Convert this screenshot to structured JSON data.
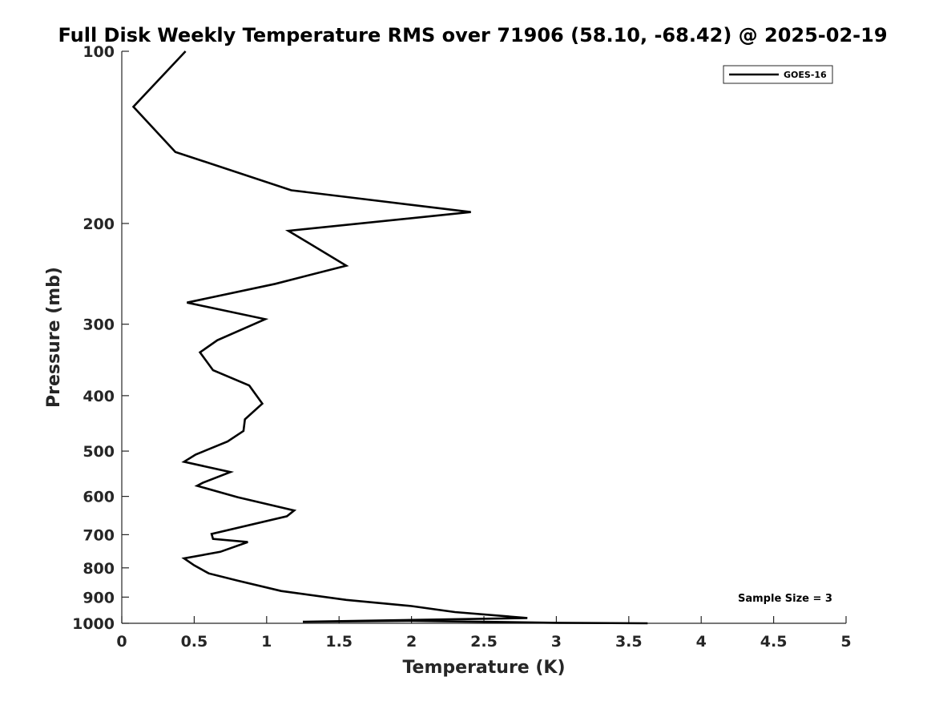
{
  "chart_data": {
    "type": "line",
    "title": "Full Disk Weekly Temperature RMS over 71906 (58.10, -68.42) @ 2025-02-19",
    "xlabel": "Temperature (K)",
    "ylabel": "Pressure (mb)",
    "xlim": [
      0,
      5
    ],
    "ylim": [
      1000,
      100
    ],
    "yscale": "log",
    "xticks": [
      0,
      0.5,
      1,
      1.5,
      2,
      2.5,
      3,
      3.5,
      4,
      4.5,
      5
    ],
    "xtick_labels": [
      "0",
      "0.5",
      "1",
      "1.5",
      "2",
      "2.5",
      "3",
      "3.5",
      "4",
      "4.5",
      "5"
    ],
    "yticks": [
      100,
      200,
      300,
      400,
      500,
      600,
      700,
      800,
      900,
      1000
    ],
    "ytick_labels": [
      "100",
      "200",
      "300",
      "400",
      "500",
      "600",
      "700",
      "800",
      "900",
      "1000"
    ],
    "grid": false,
    "legend_position": "top-right",
    "series": [
      {
        "name": "GOES-16",
        "color": "#000000",
        "points": [
          [
            0.44,
            100
          ],
          [
            0.08,
            125
          ],
          [
            0.37,
            150
          ],
          [
            1.17,
            175
          ],
          [
            2.41,
            191
          ],
          [
            1.15,
            206
          ],
          [
            1.55,
            237
          ],
          [
            1.06,
            255
          ],
          [
            0.45,
            275
          ],
          [
            0.99,
            294
          ],
          [
            0.66,
            320
          ],
          [
            0.54,
            336
          ],
          [
            0.63,
            361
          ],
          [
            0.88,
            384
          ],
          [
            0.97,
            413
          ],
          [
            0.85,
            440
          ],
          [
            0.84,
            461
          ],
          [
            0.73,
            481
          ],
          [
            0.51,
            507
          ],
          [
            0.43,
            522
          ],
          [
            0.75,
            544
          ],
          [
            0.56,
            568
          ],
          [
            0.52,
            575
          ],
          [
            0.8,
            602
          ],
          [
            1.19,
            635
          ],
          [
            1.14,
            650
          ],
          [
            0.62,
            698
          ],
          [
            0.63,
            712
          ],
          [
            0.87,
            721
          ],
          [
            0.68,
            750
          ],
          [
            0.43,
            770
          ],
          [
            0.5,
            792
          ],
          [
            0.6,
            818
          ],
          [
            0.8,
            842
          ],
          [
            1.1,
            878
          ],
          [
            1.55,
            910
          ],
          [
            2.0,
            933
          ],
          [
            2.3,
            956
          ],
          [
            2.8,
            979
          ],
          [
            1.25,
            994
          ],
          [
            2.0,
            990
          ],
          [
            3.0,
            998
          ],
          [
            3.63,
            1000
          ]
        ]
      }
    ],
    "annotations": [
      "Sample Size = 3"
    ]
  }
}
